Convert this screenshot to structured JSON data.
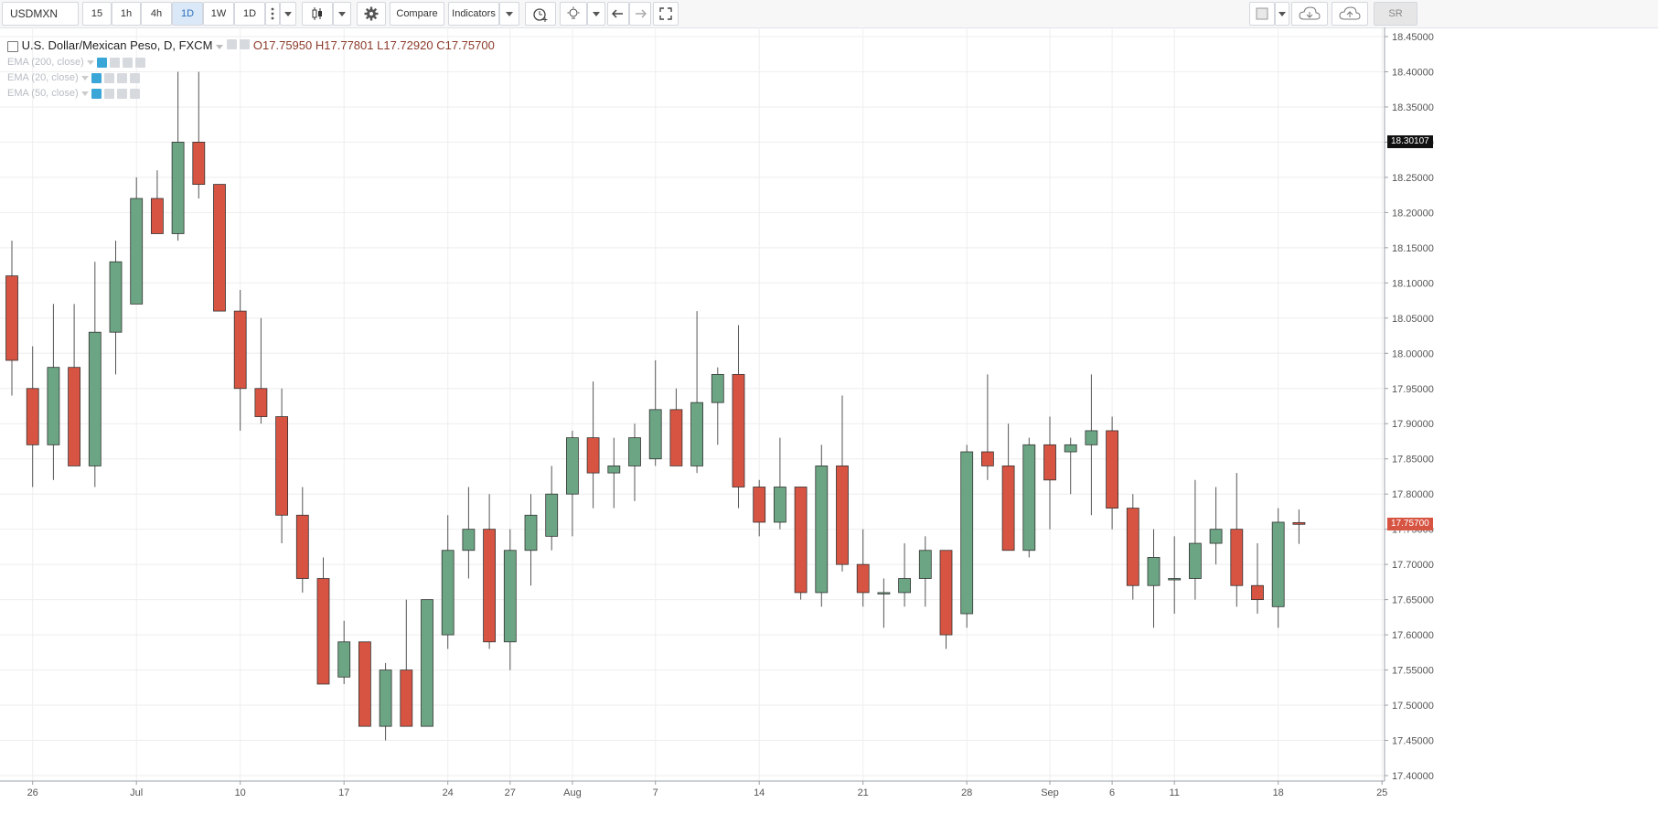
{
  "toolbar": {
    "symbol": "USDMXN",
    "intervals": [
      "15",
      "1h",
      "4h",
      "1D",
      "1W",
      "1D"
    ],
    "active_interval": "1D",
    "compare_label": "Compare",
    "indicators_label": "Indicators",
    "sr_label": "SR"
  },
  "legend": {
    "title": "U.S. Dollar/Mexican Peso, D, FXCM",
    "open": "O17.75950",
    "high": "H17.77801",
    "low": "L17.72920",
    "close": "C17.75700",
    "emas": [
      "EMA (200, close)",
      "EMA (20, close)",
      "EMA (50, close)"
    ]
  },
  "colors": {
    "up": "#6ba583",
    "down": "#d75442",
    "grid": "#eeeeee",
    "wick": "#555555"
  },
  "price_labels": {
    "crosshair": "18.30107",
    "last": "17.75700"
  },
  "chart_data": {
    "type": "candlestick",
    "ylim": [
      17.4,
      18.45
    ],
    "y_ticks": [
      "17.40000",
      "17.45000",
      "17.50000",
      "17.55000",
      "17.60000",
      "17.65000",
      "17.70000",
      "17.75000",
      "17.80000",
      "17.85000",
      "17.90000",
      "17.95000",
      "18.00000",
      "18.05000",
      "18.10000",
      "18.15000",
      "18.20000",
      "18.25000",
      "18.30000",
      "18.35000",
      "18.40000",
      "18.45000"
    ],
    "x_labels": [
      {
        "label": "26",
        "i": 1
      },
      {
        "label": "Jul",
        "i": 6
      },
      {
        "label": "10",
        "i": 11
      },
      {
        "label": "17",
        "i": 16
      },
      {
        "label": "24",
        "i": 21
      },
      {
        "label": "27",
        "i": 24
      },
      {
        "label": "Aug",
        "i": 27
      },
      {
        "label": "7",
        "i": 31
      },
      {
        "label": "14",
        "i": 36
      },
      {
        "label": "21",
        "i": 41
      },
      {
        "label": "28",
        "i": 46
      },
      {
        "label": "Sep",
        "i": 50
      },
      {
        "label": "6",
        "i": 53
      },
      {
        "label": "11",
        "i": 56
      },
      {
        "label": "18",
        "i": 61
      },
      {
        "label": "25",
        "i": 66
      }
    ],
    "candles": [
      {
        "o": 18.11,
        "h": 18.16,
        "l": 17.94,
        "c": 17.99
      },
      {
        "o": 17.95,
        "h": 18.01,
        "l": 17.81,
        "c": 17.87
      },
      {
        "o": 17.87,
        "h": 18.07,
        "l": 17.82,
        "c": 17.98
      },
      {
        "o": 17.98,
        "h": 18.07,
        "l": 17.84,
        "c": 17.84
      },
      {
        "o": 17.84,
        "h": 18.13,
        "l": 17.81,
        "c": 18.03
      },
      {
        "o": 18.03,
        "h": 18.16,
        "l": 17.97,
        "c": 18.13
      },
      {
        "o": 18.07,
        "h": 18.25,
        "l": 18.07,
        "c": 18.22
      },
      {
        "o": 18.22,
        "h": 18.26,
        "l": 18.17,
        "c": 18.17
      },
      {
        "o": 18.17,
        "h": 18.4,
        "l": 18.16,
        "c": 18.3
      },
      {
        "o": 18.3,
        "h": 18.4,
        "l": 18.22,
        "c": 18.24
      },
      {
        "o": 18.24,
        "h": 18.24,
        "l": 18.06,
        "c": 18.06
      },
      {
        "o": 18.06,
        "h": 18.09,
        "l": 17.89,
        "c": 17.95
      },
      {
        "o": 17.95,
        "h": 18.05,
        "l": 17.9,
        "c": 17.91
      },
      {
        "o": 17.91,
        "h": 17.95,
        "l": 17.73,
        "c": 17.77
      },
      {
        "o": 17.77,
        "h": 17.81,
        "l": 17.66,
        "c": 17.68
      },
      {
        "o": 17.68,
        "h": 17.71,
        "l": 17.53,
        "c": 17.53
      },
      {
        "o": 17.54,
        "h": 17.62,
        "l": 17.53,
        "c": 17.59
      },
      {
        "o": 17.59,
        "h": 17.59,
        "l": 17.47,
        "c": 17.47
      },
      {
        "o": 17.47,
        "h": 17.56,
        "l": 17.45,
        "c": 17.55
      },
      {
        "o": 17.55,
        "h": 17.65,
        "l": 17.47,
        "c": 17.47
      },
      {
        "o": 17.47,
        "h": 17.65,
        "l": 17.47,
        "c": 17.65
      },
      {
        "o": 17.6,
        "h": 17.77,
        "l": 17.58,
        "c": 17.72
      },
      {
        "o": 17.72,
        "h": 17.81,
        "l": 17.68,
        "c": 17.75
      },
      {
        "o": 17.75,
        "h": 17.8,
        "l": 17.58,
        "c": 17.59
      },
      {
        "o": 17.59,
        "h": 17.75,
        "l": 17.55,
        "c": 17.72
      },
      {
        "o": 17.72,
        "h": 17.8,
        "l": 17.67,
        "c": 17.77
      },
      {
        "o": 17.74,
        "h": 17.84,
        "l": 17.72,
        "c": 17.8
      },
      {
        "o": 17.8,
        "h": 17.89,
        "l": 17.74,
        "c": 17.88
      },
      {
        "o": 17.88,
        "h": 17.96,
        "l": 17.78,
        "c": 17.83
      },
      {
        "o": 17.83,
        "h": 17.88,
        "l": 17.78,
        "c": 17.84
      },
      {
        "o": 17.84,
        "h": 17.9,
        "l": 17.79,
        "c": 17.88
      },
      {
        "o": 17.85,
        "h": 17.99,
        "l": 17.84,
        "c": 17.92
      },
      {
        "o": 17.92,
        "h": 17.95,
        "l": 17.84,
        "c": 17.84
      },
      {
        "o": 17.84,
        "h": 18.06,
        "l": 17.83,
        "c": 17.93
      },
      {
        "o": 17.93,
        "h": 17.98,
        "l": 17.87,
        "c": 17.97
      },
      {
        "o": 17.97,
        "h": 18.04,
        "l": 17.78,
        "c": 17.81
      },
      {
        "o": 17.81,
        "h": 17.82,
        "l": 17.74,
        "c": 17.76
      },
      {
        "o": 17.76,
        "h": 17.88,
        "l": 17.75,
        "c": 17.81
      },
      {
        "o": 17.81,
        "h": 17.81,
        "l": 17.65,
        "c": 17.66
      },
      {
        "o": 17.66,
        "h": 17.87,
        "l": 17.64,
        "c": 17.84
      },
      {
        "o": 17.84,
        "h": 17.94,
        "l": 17.69,
        "c": 17.7
      },
      {
        "o": 17.7,
        "h": 17.75,
        "l": 17.64,
        "c": 17.66
      },
      {
        "o": 17.66,
        "h": 17.68,
        "l": 17.61,
        "c": 17.66
      },
      {
        "o": 17.66,
        "h": 17.73,
        "l": 17.64,
        "c": 17.68
      },
      {
        "o": 17.68,
        "h": 17.74,
        "l": 17.64,
        "c": 17.72
      },
      {
        "o": 17.72,
        "h": 17.72,
        "l": 17.58,
        "c": 17.6
      },
      {
        "o": 17.63,
        "h": 17.87,
        "l": 17.61,
        "c": 17.86
      },
      {
        "o": 17.86,
        "h": 17.97,
        "l": 17.82,
        "c": 17.84
      },
      {
        "o": 17.84,
        "h": 17.9,
        "l": 17.72,
        "c": 17.72
      },
      {
        "o": 17.72,
        "h": 17.88,
        "l": 17.71,
        "c": 17.87
      },
      {
        "o": 17.87,
        "h": 17.91,
        "l": 17.75,
        "c": 17.82
      },
      {
        "o": 17.86,
        "h": 17.88,
        "l": 17.8,
        "c": 17.87
      },
      {
        "o": 17.87,
        "h": 17.97,
        "l": 17.77,
        "c": 17.89
      },
      {
        "o": 17.89,
        "h": 17.91,
        "l": 17.75,
        "c": 17.78
      },
      {
        "o": 17.78,
        "h": 17.8,
        "l": 17.65,
        "c": 17.67
      },
      {
        "o": 17.67,
        "h": 17.75,
        "l": 17.61,
        "c": 17.71
      },
      {
        "o": 17.68,
        "h": 17.74,
        "l": 17.63,
        "c": 17.68
      },
      {
        "o": 17.68,
        "h": 17.82,
        "l": 17.65,
        "c": 17.73
      },
      {
        "o": 17.73,
        "h": 17.81,
        "l": 17.7,
        "c": 17.75
      },
      {
        "o": 17.75,
        "h": 17.83,
        "l": 17.64,
        "c": 17.67
      },
      {
        "o": 17.67,
        "h": 17.73,
        "l": 17.63,
        "c": 17.65
      },
      {
        "o": 17.64,
        "h": 17.78,
        "l": 17.61,
        "c": 17.76
      },
      {
        "o": 17.7595,
        "h": 17.77801,
        "l": 17.7292,
        "c": 17.757
      }
    ]
  }
}
